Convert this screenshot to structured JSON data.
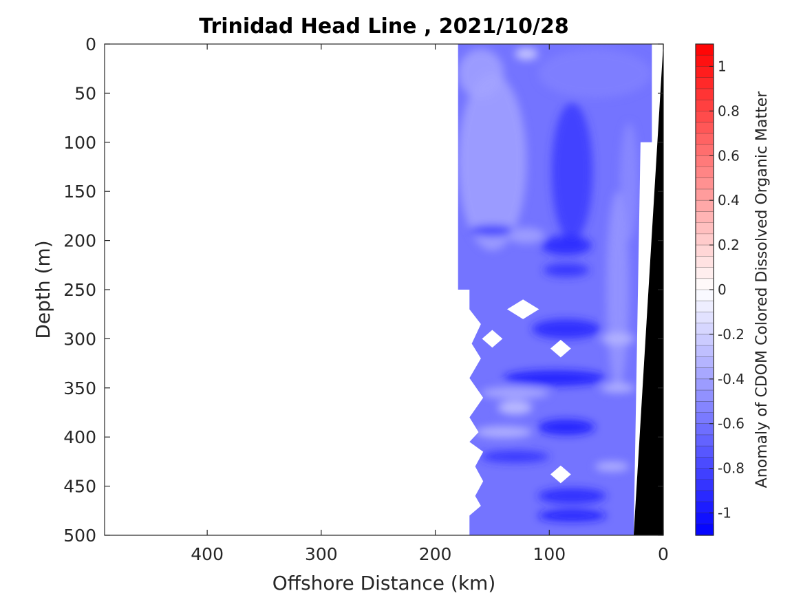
{
  "chart_data": {
    "type": "heatmap",
    "title": "Trinidad Head Line , 2021/10/28",
    "xlabel": "Offshore Distance (km)",
    "ylabel": "Depth (m)",
    "colorbar_label": "Anomaly of CDOM Colored Dissolved Organic Matter",
    "xlim": [
      490,
      0
    ],
    "x_reversed": true,
    "ylim": [
      0,
      500
    ],
    "y_reversed": true,
    "x_ticks": [
      400,
      300,
      200,
      100,
      0
    ],
    "y_ticks": [
      0,
      50,
      100,
      150,
      200,
      250,
      300,
      350,
      400,
      450,
      500
    ],
    "colorbar": {
      "range": [
        -1.1,
        1.1
      ],
      "ticks": [
        -1,
        -0.8,
        -0.6,
        -0.4,
        -0.2,
        0,
        0.2,
        0.4,
        0.6,
        0.8,
        1
      ],
      "tick_labels": [
        "-1",
        "-0.8",
        "-0.6",
        "-0.4",
        "-0.2",
        "0",
        "0.2",
        "0.4",
        "0.6",
        "0.8",
        "1"
      ],
      "levels": 44,
      "colormap": "blue-white-red",
      "low_color": "#0000ff",
      "mid_color": "#ffffff",
      "high_color": "#ff0000"
    },
    "data_extent_x": [
      0,
      180
    ],
    "grid": false,
    "bathymetry_color": "#000000",
    "bathymetry": [
      {
        "x": 0,
        "y": 0
      },
      {
        "x": 0,
        "y": 500
      },
      {
        "x": 26,
        "y": 500
      }
    ],
    "data_outline": [
      {
        "x": 180,
        "y": 0
      },
      {
        "x": 10,
        "y": 0
      },
      {
        "x": 10,
        "y": 100
      },
      {
        "x": 20,
        "y": 100
      },
      {
        "x": 26,
        "y": 500
      },
      {
        "x": 170,
        "y": 500
      },
      {
        "x": 170,
        "y": 480
      },
      {
        "x": 160,
        "y": 470
      },
      {
        "x": 165,
        "y": 460
      },
      {
        "x": 158,
        "y": 445
      },
      {
        "x": 165,
        "y": 430
      },
      {
        "x": 158,
        "y": 415
      },
      {
        "x": 170,
        "y": 405
      },
      {
        "x": 162,
        "y": 395
      },
      {
        "x": 170,
        "y": 380
      },
      {
        "x": 158,
        "y": 360
      },
      {
        "x": 170,
        "y": 340
      },
      {
        "x": 160,
        "y": 320
      },
      {
        "x": 168,
        "y": 305
      },
      {
        "x": 160,
        "y": 285
      },
      {
        "x": 170,
        "y": 270
      },
      {
        "x": 170,
        "y": 250
      },
      {
        "x": 180,
        "y": 250
      }
    ],
    "data_gaps": [
      {
        "x": 123,
        "y": 270,
        "rx": 14,
        "ry": 10
      },
      {
        "x": 150,
        "y": 300,
        "rx": 9,
        "ry": 9
      },
      {
        "x": 90,
        "y": 310,
        "rx": 9,
        "ry": 9
      },
      {
        "x": 90,
        "y": 438,
        "rx": 9,
        "ry": 9
      }
    ],
    "field_blobs": [
      {
        "x": 150,
        "y": 120,
        "rx": 30,
        "ry": 90,
        "value": -0.4
      },
      {
        "x": 160,
        "y": 30,
        "rx": 20,
        "ry": 25,
        "value": -0.4
      },
      {
        "x": 60,
        "y": 30,
        "rx": 50,
        "ry": 25,
        "value": -0.55
      },
      {
        "x": 120,
        "y": 10,
        "rx": 10,
        "ry": 6,
        "value": -0.2
      },
      {
        "x": 80,
        "y": 130,
        "rx": 18,
        "ry": 70,
        "value": -0.85
      },
      {
        "x": 30,
        "y": 140,
        "rx": 8,
        "ry": 60,
        "value": -0.5
      },
      {
        "x": 40,
        "y": 250,
        "rx": 10,
        "ry": 100,
        "value": -0.45
      },
      {
        "x": 85,
        "y": 205,
        "rx": 22,
        "ry": 10,
        "value": -0.95
      },
      {
        "x": 85,
        "y": 230,
        "rx": 20,
        "ry": 7,
        "value": -0.9
      },
      {
        "x": 150,
        "y": 190,
        "rx": 20,
        "ry": 6,
        "value": -0.85
      },
      {
        "x": 120,
        "y": 195,
        "rx": 16,
        "ry": 8,
        "value": -0.4
      },
      {
        "x": 85,
        "y": 290,
        "rx": 30,
        "ry": 10,
        "value": -0.95
      },
      {
        "x": 95,
        "y": 340,
        "rx": 45,
        "ry": 8,
        "value": -1.0
      },
      {
        "x": 130,
        "y": 355,
        "rx": 30,
        "ry": 6,
        "value": -0.35
      },
      {
        "x": 130,
        "y": 370,
        "rx": 15,
        "ry": 7,
        "value": -0.25
      },
      {
        "x": 140,
        "y": 395,
        "rx": 25,
        "ry": 6,
        "value": -0.3
      },
      {
        "x": 85,
        "y": 390,
        "rx": 25,
        "ry": 8,
        "value": -1.0
      },
      {
        "x": 80,
        "y": 460,
        "rx": 30,
        "ry": 8,
        "value": -0.95
      },
      {
        "x": 80,
        "y": 480,
        "rx": 30,
        "ry": 6,
        "value": -1.0
      },
      {
        "x": 130,
        "y": 420,
        "rx": 30,
        "ry": 6,
        "value": -0.9
      },
      {
        "x": 40,
        "y": 300,
        "rx": 15,
        "ry": 6,
        "value": -0.3
      },
      {
        "x": 40,
        "y": 350,
        "rx": 15,
        "ry": 5,
        "value": -0.3
      },
      {
        "x": 45,
        "y": 430,
        "rx": 15,
        "ry": 5,
        "value": -0.3
      }
    ],
    "field_base_value": -0.6
  }
}
